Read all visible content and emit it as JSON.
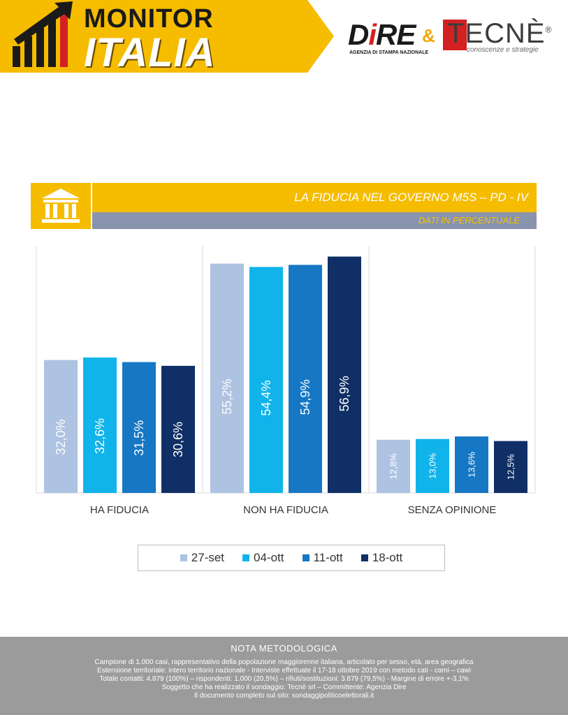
{
  "header": {
    "brand_line1": "MONITOR",
    "brand_line2": "ITALIA",
    "dire_word_1": "D",
    "dire_word_i": "i",
    "dire_word_2": "RE",
    "dire_tagline": "AGENZIA DI STAMPA NAZIONALE",
    "ampersand": "&",
    "tecne_word": "TECNÈ",
    "tecne_reg": "®",
    "tecne_tagline": "conoscenze e strategie",
    "banner_color": "#f5bc00"
  },
  "title": "LA FIDUCIA NEL GOVERNO M5S – PD - IV",
  "subtitle": "DATI IN PERCENTUALE",
  "icon": "government-building-icon",
  "chart_data": {
    "type": "bar",
    "categories": [
      "HA FIDUCIA",
      "NON HA FIDUCIA",
      "SENZA OPINIONE"
    ],
    "series": [
      {
        "name": "27-set",
        "color": "#aec3e2",
        "values": [
          32.0,
          55.2,
          12.8
        ],
        "labels": [
          "32,0%",
          "55,2%",
          "12,8%"
        ]
      },
      {
        "name": "04-ott",
        "color": "#10b4ea",
        "values": [
          32.6,
          54.4,
          13.0
        ],
        "labels": [
          "32,6%",
          "54,4%",
          "13,0%"
        ]
      },
      {
        "name": "11-ott",
        "color": "#1677c4",
        "values": [
          31.5,
          54.9,
          13.6
        ],
        "labels": [
          "31,5%",
          "54,9%",
          "13,6%"
        ]
      },
      {
        "name": "18-ott",
        "color": "#0f2f66",
        "values": [
          30.6,
          56.9,
          12.5
        ],
        "labels": [
          "30,6%",
          "56,9%",
          "12,5%"
        ]
      }
    ],
    "ylim": [
      0,
      60
    ],
    "grid": false,
    "legend_position": "bottom"
  },
  "footer": {
    "title": "NOTA METODOLOGICA",
    "lines": [
      "Campione di 1.000 casi, rappresentativo della popolazione maggiorenne italiana, articolato per sesso, età, area geografica",
      "Estensione territoriale: intero territorio nazionale  - Interviste effettuate il 17-18 ottobre 2019 con metodo cati - cami – cawi",
      "Totale contatti: 4.879 (100%) – rispondenti: 1.000 (20,5%) – rifiuti/sostituzioni: 3.879 (79,5%) - Margine di errore +-3,1%",
      "Soggetto che ha realizzato il sondaggio: Tecnè srl – Committente: Agenzia Dire",
      "Il documento completo sul sito: sondaggipoliticoelettorali.it"
    ]
  }
}
